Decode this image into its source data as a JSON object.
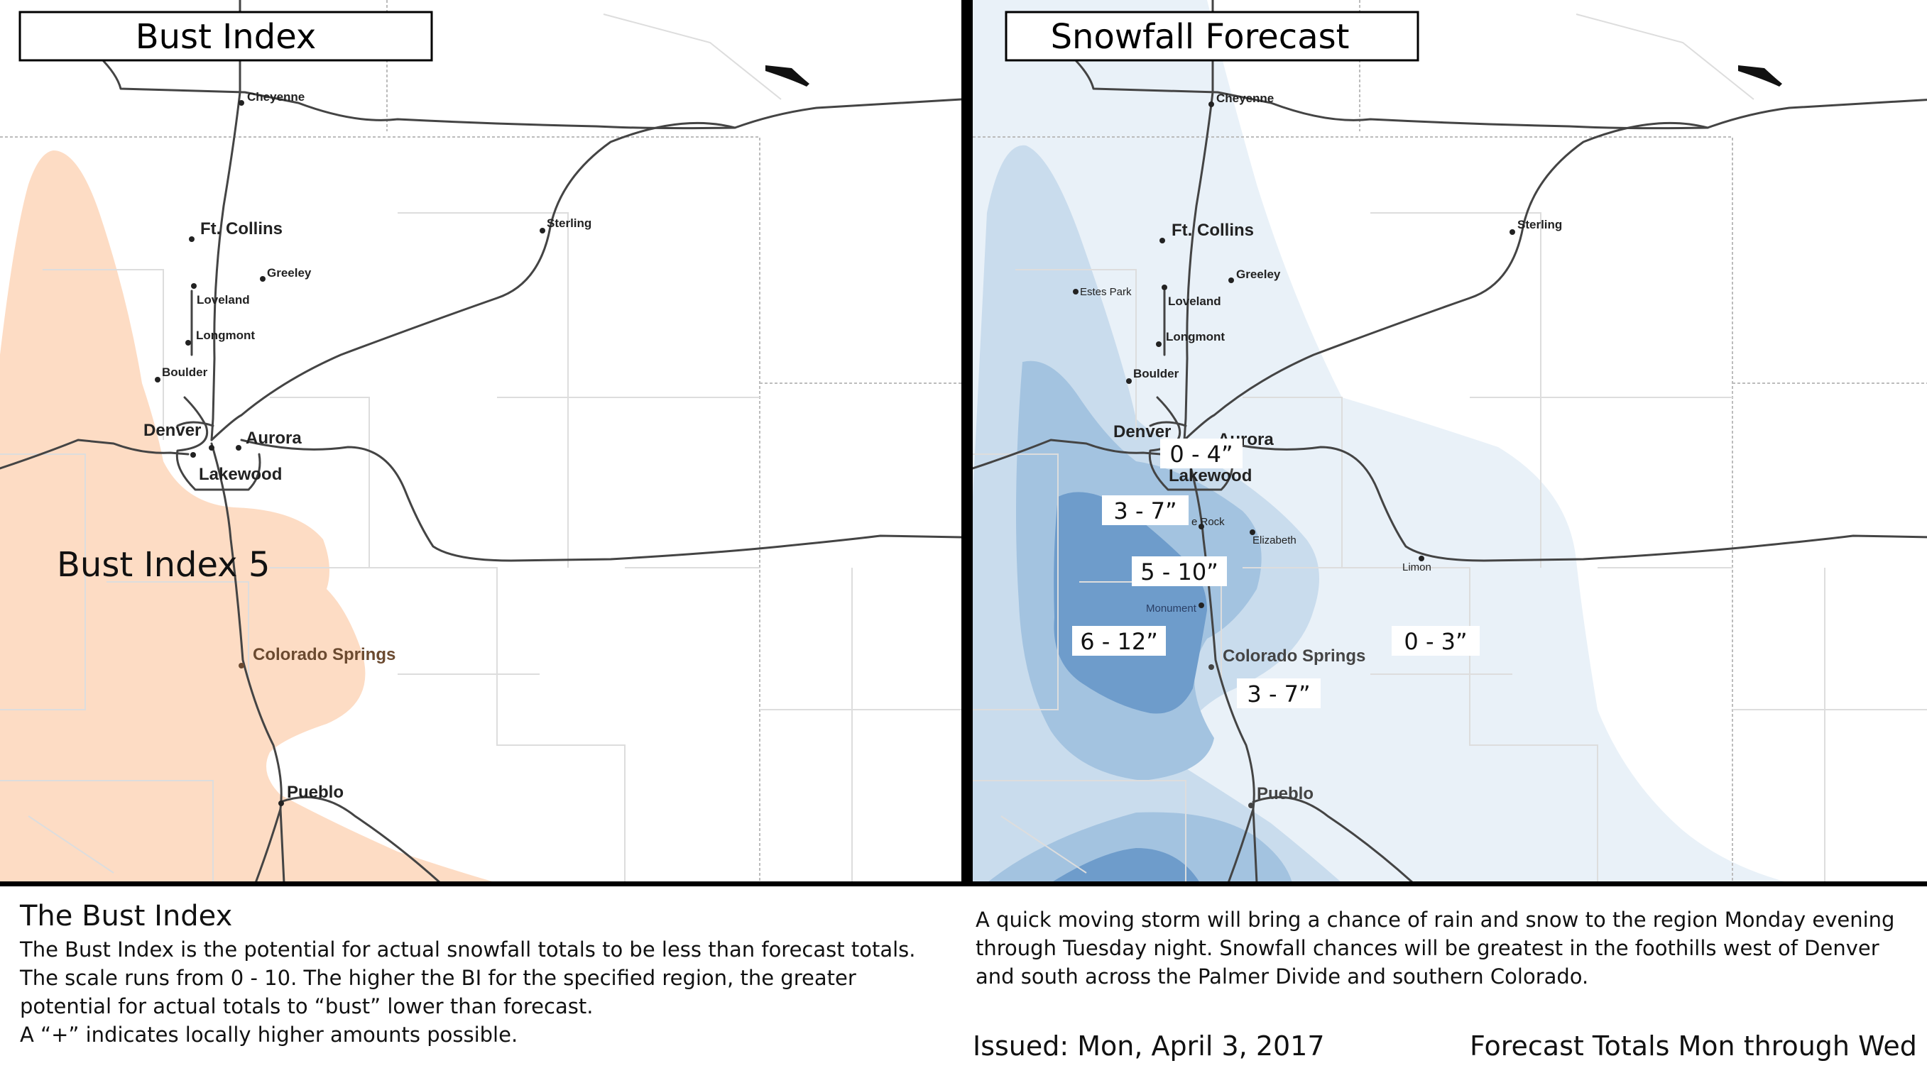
{
  "left_panel": {
    "title": "Bust Index",
    "bust_area_label": "Bust Index 5",
    "cities": {
      "cheyenne": "Cheyenne",
      "ft_collins": "Ft. Collins",
      "greeley": "Greeley",
      "loveland": "Loveland",
      "longmont": "Longmont",
      "boulder": "Boulder",
      "denver": "Denver",
      "aurora": "Aurora",
      "lakewood": "Lakewood",
      "sterling": "Sterling",
      "colorado_springs": "Colorado Springs",
      "pueblo": "Pueblo"
    }
  },
  "right_panel": {
    "title": "Snowfall Forecast",
    "cities": {
      "cheyenne": "Cheyenne",
      "ft_collins": "Ft. Collins",
      "greeley": "Greeley",
      "estes_park": "Estes Park",
      "loveland": "Loveland",
      "longmont": "Longmont",
      "boulder": "Boulder",
      "denver": "Denver",
      "aurora": "Aurora",
      "lakewood": "Lakewood",
      "sterling": "Sterling",
      "castle_rock": "e Rock",
      "elizabeth": "Elizabeth",
      "limon": "Limon",
      "monument": "Monument",
      "colorado_springs": "Colorado Springs",
      "pueblo": "Pueblo"
    },
    "snow_bands": [
      {
        "label": "0 - 4”"
      },
      {
        "label": "3 - 7”"
      },
      {
        "label": "5 - 10”"
      },
      {
        "label": "6 - 12”"
      },
      {
        "label": "0 - 3”"
      },
      {
        "label": "3 - 7”"
      }
    ],
    "band_colors": [
      "#e9f1f8",
      "#c9dced",
      "#a3c3e0",
      "#6e9ccb"
    ]
  },
  "colors": {
    "bust_fill": "#fddcc4",
    "roads": "#444444",
    "boundaries": "#bbbbbb"
  },
  "footer": {
    "bust_heading": "The Bust Index",
    "bust_description": "The Bust Index is the potential for actual snowfall totals to be less than forecast totals. The scale runs from 0 - 10. The higher the BI for the specified region, the greater potential for actual totals to “bust” lower than forecast.",
    "bust_plus_note": "A “+” indicates locally higher amounts possible.",
    "storm_summary": "A quick moving storm will bring a chance of rain and snow to the region Monday evening through Tuesday night. Snowfall chances will be greatest in the foothills west of Denver and south across the Palmer Divide and southern Colorado.",
    "issued": "Issued: Mon, April 3, 2017",
    "totals_period": "Forecast Totals Mon through Wed"
  }
}
